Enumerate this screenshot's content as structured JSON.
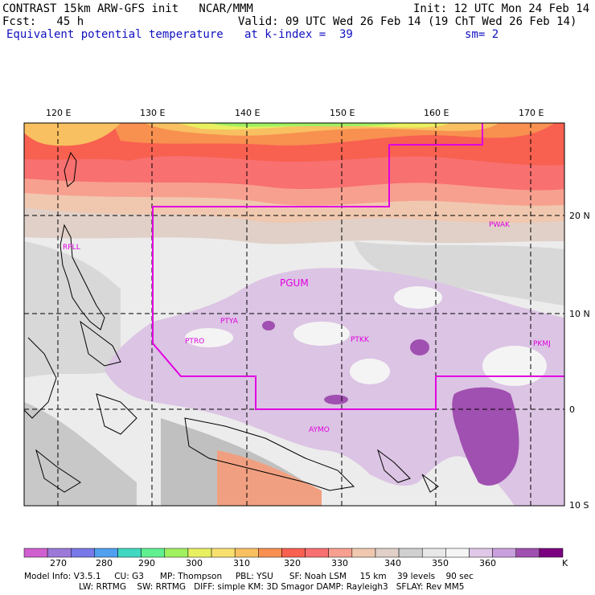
{
  "header": {
    "line1_left": "CONTRAST 15km ARW-GFS init   NCAR/MMM",
    "line1_right": "Init: 12 UTC Mon 24 Feb 14",
    "line2_left": "Fcst:   45 h",
    "line2_right": "Valid: 09 UTC Wed 26 Feb 14 (19 ChT Wed 26 Feb 14)",
    "line3_left": "Equivalent potential temperature",
    "line3_mid": "at k-index =  39",
    "line3_right": "sm= 2"
  },
  "map": {
    "lon_labels": [
      "120 E",
      "130 E",
      "140 E",
      "150 E",
      "160 E",
      "170 E"
    ],
    "lat_labels": [
      "20 N",
      "10 N",
      "0",
      "10 S"
    ],
    "stations": [
      "RPLL",
      "PGUM",
      "PTYA",
      "PTRO",
      "PTKK",
      "PKMJ",
      "PWAK",
      "AYMO"
    ],
    "boundary_color": "#e000e0"
  },
  "colorbar": {
    "labels": [
      "270",
      "280",
      "290",
      "300",
      "310",
      "320",
      "330",
      "340",
      "350",
      "360"
    ],
    "unit": "K",
    "colors": [
      "#d060d0",
      "#9c78d8",
      "#7878e8",
      "#50a0f0",
      "#40d8c0",
      "#60f090",
      "#a0f060",
      "#e8f060",
      "#f8e070",
      "#f8c060",
      "#f89050",
      "#f86050",
      "#f87070",
      "#f8a090",
      "#f0c8b0",
      "#e0d0c8",
      "#d0d0d0",
      "#e8e8e8",
      "#f4f4f4",
      "#e0c8e8",
      "#c8a0dc",
      "#a050b0",
      "#7a0080"
    ]
  },
  "footer": {
    "line1": "Model Info: V3.5.1     CU: G3      MP: Thompson     PBL: YSU      SF: Noah LSM     15 km    39 levels    90 sec",
    "line2": "LW: RRTMG    SW: RRTMG   DIFF: simple KM: 3D Smagor DAMP: Rayleigh3   SFLAY: Rev MM5"
  }
}
